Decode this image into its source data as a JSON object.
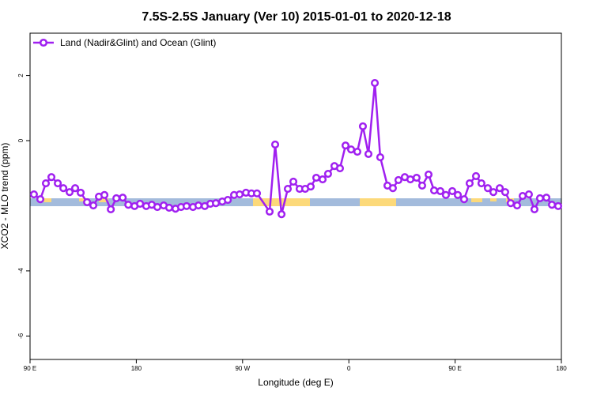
{
  "chart_data": {
    "type": "line",
    "title": "7.5S-2.5S January (Ver 10)   2015-01-01 to 2020-12-18",
    "x_label": "Longitude (deg E)",
    "y_label": "XCO2 - MLO trend (ppm)",
    "xlim": [
      90,
      540
    ],
    "ylim": [
      -6.72,
      3.3
    ],
    "xticks": [
      {
        "value": 90,
        "label": "90 E"
      },
      {
        "value": 180,
        "label": "180"
      },
      {
        "value": 270,
        "label": "90 W"
      },
      {
        "value": 360,
        "label": "0"
      },
      {
        "value": 450,
        "label": "90 E"
      },
      {
        "value": 540,
        "label": "180"
      }
    ],
    "yticks": [
      -6,
      -4,
      0,
      2
    ],
    "legend": "top-left",
    "series": [
      {
        "name": "Land (Nadir&Glint) and Ocean (Glint)",
        "color": "#a020f0",
        "x": [
          93.3,
          98.7,
          103.4,
          108.1,
          113.5,
          118.2,
          123.5,
          128.2,
          132.9,
          138.3,
          143.6,
          148.3,
          153,
          158.4,
          163.1,
          168.5,
          173.2,
          178.5,
          183.2,
          188.4,
          193.1,
          197.8,
          203.2,
          207.8,
          213.2,
          217.9,
          222.6,
          228,
          232.6,
          238,
          242.7,
          247.4,
          252.8,
          257.5,
          262.8,
          267.5,
          272.9,
          277.5,
          282.2,
          292.9,
          297.6,
          303,
          308.3,
          313,
          318.3,
          323,
          327.7,
          332.4,
          337.8,
          342.4,
          347.8,
          352.5,
          357.2,
          361.9,
          367.2,
          371.9,
          376.6,
          382,
          386.6,
          392.7,
          397.3,
          402,
          407.4,
          412.1,
          417.4,
          422.1,
          427.5,
          432.2,
          437.5,
          442.2,
          447.6,
          452.3,
          457.6,
          462.3,
          467.7,
          472.3,
          477.7,
          482.4,
          487.8,
          492.4,
          497.1,
          502.5,
          507.2,
          512.5,
          517.2,
          521.9,
          527.3,
          532,
          537.3
        ],
        "values": [
          -1.65,
          -1.8,
          -1.31,
          -1.12,
          -1.31,
          -1.46,
          -1.58,
          -1.46,
          -1.6,
          -1.89,
          -1.99,
          -1.72,
          -1.67,
          -2.11,
          -1.77,
          -1.75,
          -1.97,
          -2.01,
          -1.94,
          -2.01,
          -1.97,
          -2.04,
          -1.99,
          -2.06,
          -2.09,
          -2.04,
          -2.01,
          -2.04,
          -1.99,
          -2.01,
          -1.94,
          -1.92,
          -1.87,
          -1.82,
          -1.67,
          -1.65,
          -1.6,
          -1.62,
          -1.62,
          -2.18,
          -0.12,
          -2.26,
          -1.48,
          -1.26,
          -1.48,
          -1.48,
          -1.41,
          -1.14,
          -1.19,
          -1.02,
          -0.78,
          -0.85,
          -0.15,
          -0.27,
          -0.34,
          0.44,
          -0.41,
          1.77,
          -0.51,
          -1.38,
          -1.46,
          -1.21,
          -1.12,
          -1.19,
          -1.14,
          -1.38,
          -1.04,
          -1.53,
          -1.55,
          -1.67,
          -1.55,
          -1.67,
          -1.8,
          -1.31,
          -1.09,
          -1.31,
          -1.46,
          -1.58,
          -1.46,
          -1.58,
          -1.92,
          -1.99,
          -1.7,
          -1.65,
          -2.11,
          -1.77,
          -1.75,
          -1.97,
          -2.01
        ]
      }
    ]
  }
}
